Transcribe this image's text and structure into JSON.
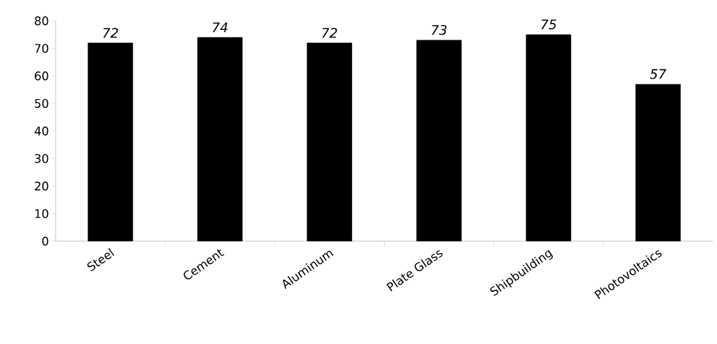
{
  "chart_data": {
    "type": "bar",
    "categories": [
      "Steel",
      "Cement",
      "Aluminum",
      "Plate Glass",
      "Shipbuilding",
      "Photovoltaics"
    ],
    "values": [
      72,
      74,
      72,
      73,
      75,
      57
    ],
    "color": "#000000",
    "ylim": [
      0,
      80
    ],
    "yticks": [
      0,
      10,
      20,
      30,
      40,
      50,
      60,
      70,
      80
    ],
    "data_labels": true,
    "grid": false
  }
}
